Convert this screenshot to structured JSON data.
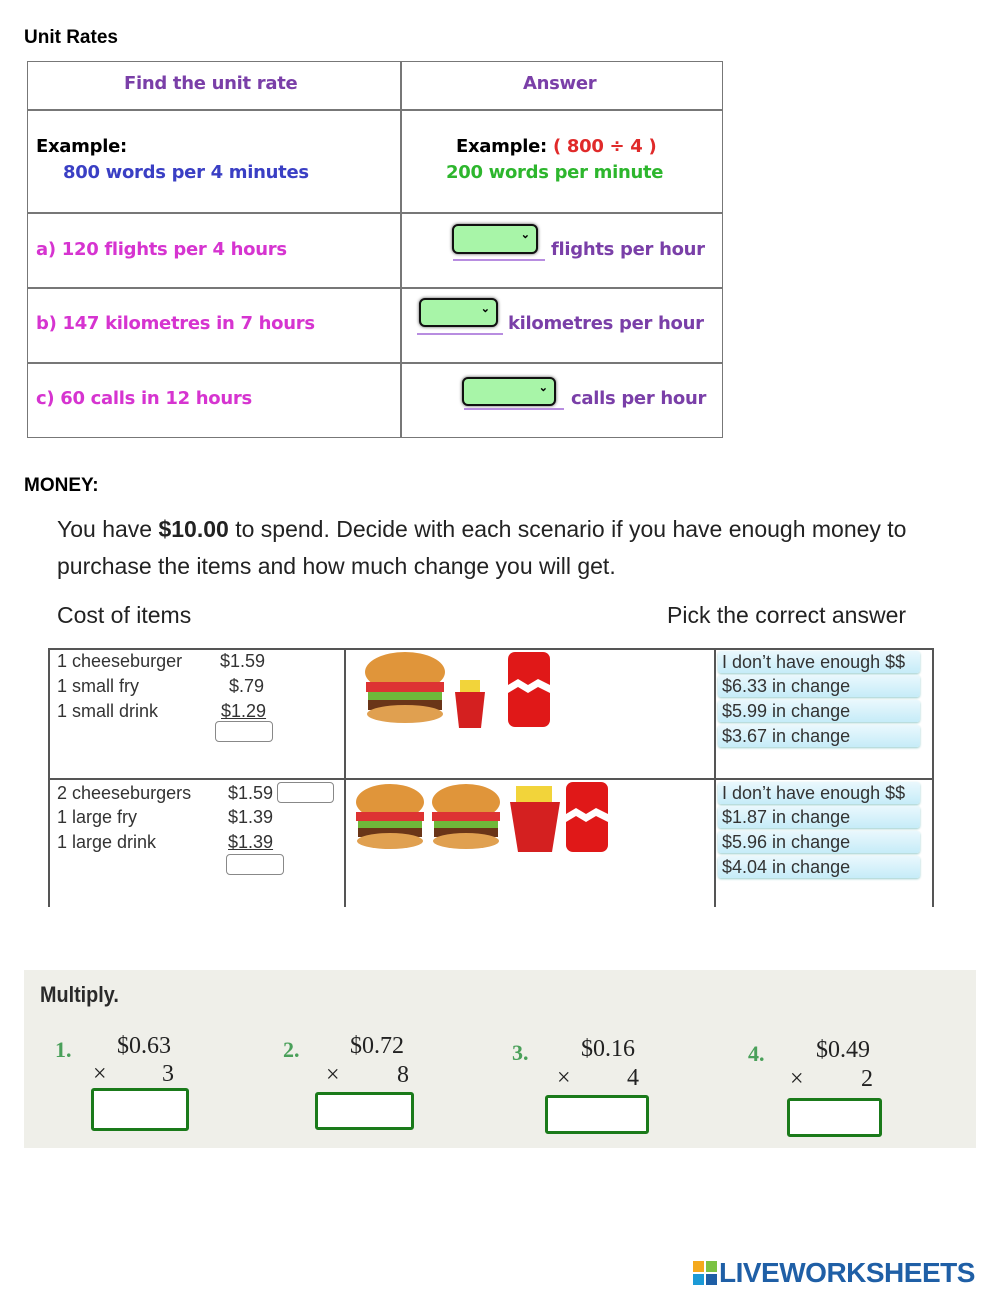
{
  "unit_rates": {
    "heading": "Unit Rates",
    "col_headers": [
      "Find the unit rate",
      "Answer"
    ],
    "example": {
      "label": "Example:",
      "question": "800 words per 4 minutes",
      "answer_label": "Example:",
      "calc": "( 800 ÷ 4 )",
      "answer": "200 words per minute"
    },
    "rows": [
      {
        "question": "a) 120 flights per 4 hours",
        "unit": "flights per hour"
      },
      {
        "question": "b) 147 kilometres in 7 hours",
        "unit": "kilometres per hour"
      },
      {
        "question": "c) 60 calls in 12 hours",
        "unit": "calls per hour"
      }
    ],
    "dropdown_color": "#a8f5a8"
  },
  "money": {
    "heading": "MONEY:",
    "intro_pre": "You have ",
    "intro_amount": "$10.00",
    "intro_post": " to spend. Decide with each scenario if you have enough money to",
    "intro_line2": "purchase the items and how much change you will get.",
    "cost_label": "Cost of items",
    "pick_label": "Pick the correct answer",
    "scenarios": [
      {
        "items": [
          {
            "name": "1 cheeseburger",
            "price": "$1.59"
          },
          {
            "name": "1 small fry",
            "price": "$.79"
          },
          {
            "name": "1 small drink",
            "price": "$1.29"
          }
        ],
        "options": [
          "I don’t have enough $$",
          "$6.33 in change",
          "$5.99 in change",
          "$3.67 in change"
        ]
      },
      {
        "items": [
          {
            "name": "2 cheeseburgers",
            "price": "$1.59"
          },
          {
            "name": "1 large fry",
            "price": "$1.39"
          },
          {
            "name": "1 large drink",
            "price": "$1.39"
          }
        ],
        "options": [
          "I don’t have enough $$",
          "$1.87 in change",
          "$5.96 in change",
          "$4.04 in change"
        ]
      }
    ]
  },
  "multiply": {
    "heading": "Multiply.",
    "times_sign": "×",
    "problems": [
      {
        "number": "1.",
        "amount": "$0.63",
        "factor": "3"
      },
      {
        "number": "2.",
        "amount": "$0.72",
        "factor": "8"
      },
      {
        "number": "3.",
        "amount": "$0.16",
        "factor": "4"
      },
      {
        "number": "4.",
        "amount": "$0.49",
        "factor": "2"
      }
    ]
  },
  "footer": {
    "logo_text": "LIVEWORKSHEETS"
  }
}
